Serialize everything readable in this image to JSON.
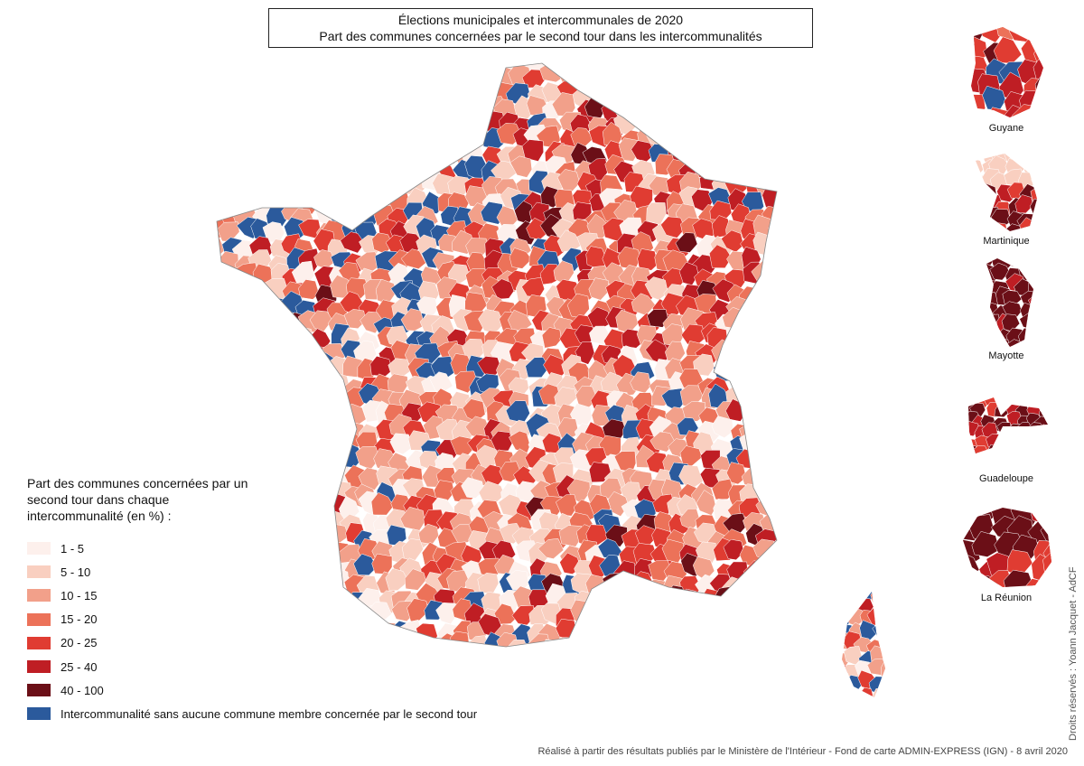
{
  "title": {
    "line1": "Élections municipales et intercommunales de 2020",
    "line2": "Part des communes concernées par le second tour dans les intercommunalités"
  },
  "legend": {
    "title": "Part des communes concernées par un second tour dans chaque intercommunalité (en %) :",
    "classes": [
      {
        "label": "1 - 5",
        "color": "#fdf0ec"
      },
      {
        "label": "5 - 10",
        "color": "#f9cfc0"
      },
      {
        "label": "10 - 15",
        "color": "#f2a08a"
      },
      {
        "label": "15 - 20",
        "color": "#ec7259"
      },
      {
        "label": "20 - 25",
        "color": "#e03c32"
      },
      {
        "label": "25 - 40",
        "color": "#bf1e24"
      },
      {
        "label": "40 - 100",
        "color": "#6b0f17"
      },
      {
        "label": "Intercommunalité sans aucune commune membre concernée par le second tour",
        "color": "#2b5a9c"
      }
    ]
  },
  "territories": {
    "guyane": "Guyane",
    "martinique": "Martinique",
    "mayotte": "Mayotte",
    "guadeloupe": "Guadeloupe",
    "reunion": "La Réunion"
  },
  "source": "Réalisé à partir des résultats publiés par le Ministère de l'Intérieur - Fond de carte ADMIN-EXPRESS (IGN) - 8 avril 2020",
  "credit": "Droits réservés : Yoann Jacquet - AdCF"
}
